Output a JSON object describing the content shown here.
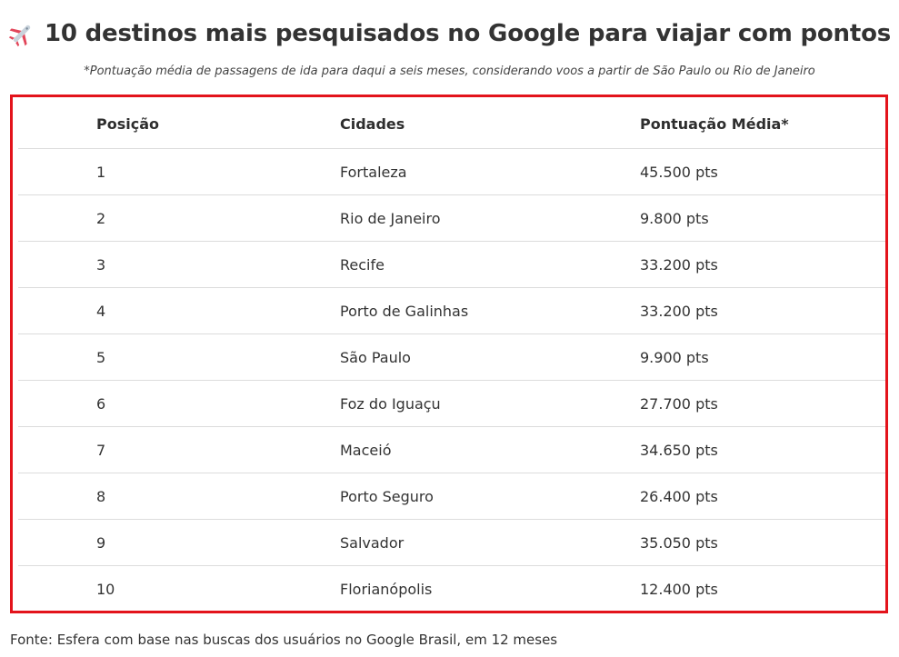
{
  "header": {
    "icon": "airplane-icon",
    "title": "10 destinos mais pesquisados no Google para viajar com pontos",
    "subtitle": "*Pontuação média de passagens de ida para daqui a seis meses, considerando voos a partir de São Paulo ou Rio de Janeiro"
  },
  "table": {
    "columns": [
      "Posição",
      "Cidades",
      "Pontuação Média*"
    ],
    "rows": [
      [
        "1",
        "Fortaleza",
        "45.500 pts"
      ],
      [
        "2",
        "Rio de Janeiro",
        "9.800 pts"
      ],
      [
        "3",
        "Recife",
        "33.200 pts"
      ],
      [
        "4",
        "Porto de Galinhas",
        "33.200 pts"
      ],
      [
        "5",
        "São Paulo",
        "9.900 pts"
      ],
      [
        "6",
        "Foz do Iguaçu",
        "27.700 pts"
      ],
      [
        "7",
        "Maceió",
        "34.650 pts"
      ],
      [
        "8",
        "Porto Seguro",
        "26.400 pts"
      ],
      [
        "9",
        "Salvador",
        "35.050 pts"
      ],
      [
        "10",
        "Florianópolis",
        "12.400 pts"
      ]
    ]
  },
  "footer": {
    "source": "Fonte: Esfera com base nas buscas dos usuários no Google Brasil, em 12 meses"
  },
  "colors": {
    "frame": "#e3131b",
    "plane_body": "#c9d3dc",
    "plane_accent": "#e2465a"
  }
}
